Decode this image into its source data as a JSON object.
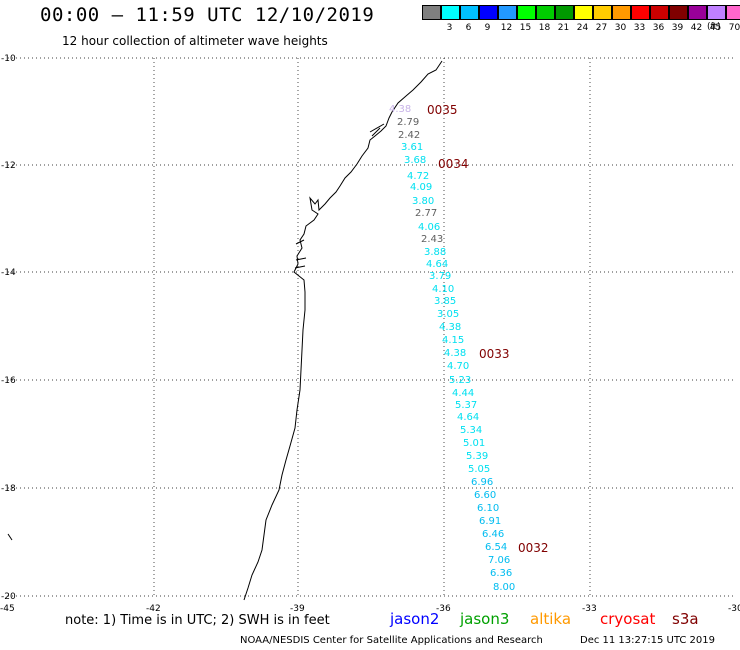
{
  "header": {
    "title": "00:00 – 11:59 UTC 12/10/2019",
    "subtitle": "12 hour collection of altimeter wave heights"
  },
  "scale": {
    "unit": "(ft)",
    "items": [
      {
        "color": "#7f7f7f",
        "label": ""
      },
      {
        "color": "#00ffff",
        "label": "3"
      },
      {
        "color": "#00bfff",
        "label": "6"
      },
      {
        "color": "#0000ff",
        "label": "9"
      },
      {
        "color": "#2299ff",
        "label": "12"
      },
      {
        "color": "#00ff00",
        "label": "15"
      },
      {
        "color": "#00cc00",
        "label": "18"
      },
      {
        "color": "#009900",
        "label": "21"
      },
      {
        "color": "#ffff00",
        "label": "24"
      },
      {
        "color": "#ffcc00",
        "label": "27"
      },
      {
        "color": "#ff9900",
        "label": "30"
      },
      {
        "color": "#ff0000",
        "label": "33"
      },
      {
        "color": "#cc0000",
        "label": "36"
      },
      {
        "color": "#800000",
        "label": "39"
      },
      {
        "color": "#990099",
        "label": "42"
      },
      {
        "color": "#c080ff",
        "label": "45"
      },
      {
        "color": "#ff66cc",
        "label": "70"
      },
      {
        "color": "#000000",
        "label": ""
      }
    ]
  },
  "axes": {
    "lat_labels": [
      "-10",
      "-12",
      "-14",
      "-16",
      "-18",
      "-20"
    ],
    "lon_labels": [
      "-45",
      "-42",
      "-39",
      "-36",
      "-33",
      "-30"
    ]
  },
  "passes": [
    "0035",
    "0034",
    "0033",
    "0032"
  ],
  "wave_heights": [
    {
      "v": "4.38",
      "c": "#c8b4e8"
    },
    {
      "v": "2.79",
      "c": "#606060"
    },
    {
      "v": "2.42",
      "c": "#606060"
    },
    {
      "v": "3.61",
      "c": "#00e0f0"
    },
    {
      "v": "3.68",
      "c": "#00e0f0"
    },
    {
      "v": "4.72",
      "c": "#00e0f0"
    },
    {
      "v": "4.09",
      "c": "#00e0f0"
    },
    {
      "v": "3.80",
      "c": "#00e0f0"
    },
    {
      "v": "2.77",
      "c": "#606060"
    },
    {
      "v": "4.06",
      "c": "#00e0f0"
    },
    {
      "v": "2.43",
      "c": "#606060"
    },
    {
      "v": "3.88",
      "c": "#00e0f0"
    },
    {
      "v": "4.64",
      "c": "#00e0f0"
    },
    {
      "v": "3.79",
      "c": "#00e0f0"
    },
    {
      "v": "4.10",
      "c": "#00e0f0"
    },
    {
      "v": "3.85",
      "c": "#00e0f0"
    },
    {
      "v": "3.05",
      "c": "#00e0f0"
    },
    {
      "v": "4.38",
      "c": "#00e0f0"
    },
    {
      "v": "4.15",
      "c": "#00e0f0"
    },
    {
      "v": "4.38",
      "c": "#00e0f0"
    },
    {
      "v": "4.70",
      "c": "#00e0f0"
    },
    {
      "v": "5.23",
      "c": "#00e0f0"
    },
    {
      "v": "4.44",
      "c": "#00e0f0"
    },
    {
      "v": "5.37",
      "c": "#00e0f0"
    },
    {
      "v": "4.64",
      "c": "#00e0f0"
    },
    {
      "v": "5.34",
      "c": "#00e0f0"
    },
    {
      "v": "5.01",
      "c": "#00e0f0"
    },
    {
      "v": "5.39",
      "c": "#00e0f0"
    },
    {
      "v": "5.05",
      "c": "#00e0f0"
    },
    {
      "v": "6.96",
      "c": "#00bcf0"
    },
    {
      "v": "6.60",
      "c": "#00bcf0"
    },
    {
      "v": "6.10",
      "c": "#00bcf0"
    },
    {
      "v": "6.91",
      "c": "#00bcf0"
    },
    {
      "v": "6.46",
      "c": "#00bcf0"
    },
    {
      "v": "6.54",
      "c": "#00bcf0"
    },
    {
      "v": "7.06",
      "c": "#00bcf0"
    },
    {
      "v": "6.36",
      "c": "#00bcf0"
    },
    {
      "v": "8.00",
      "c": "#00bcf0"
    }
  ],
  "footer": {
    "note": "note:  1) Time is in UTC;  2) SWH is in feet",
    "satellites": [
      {
        "name": "jason2",
        "color": "#0000ff"
      },
      {
        "name": "jason3",
        "color": "#00a000"
      },
      {
        "name": "altika",
        "color": "#ff9900"
      },
      {
        "name": "cryosat",
        "color": "#ff0000"
      },
      {
        "name": "s3a",
        "color": "#800000"
      }
    ],
    "credit": "NOAA/NESDIS Center for Satellite Applications and Research",
    "timestamp": "Dec 11 13:27:15 UTC 2019"
  }
}
